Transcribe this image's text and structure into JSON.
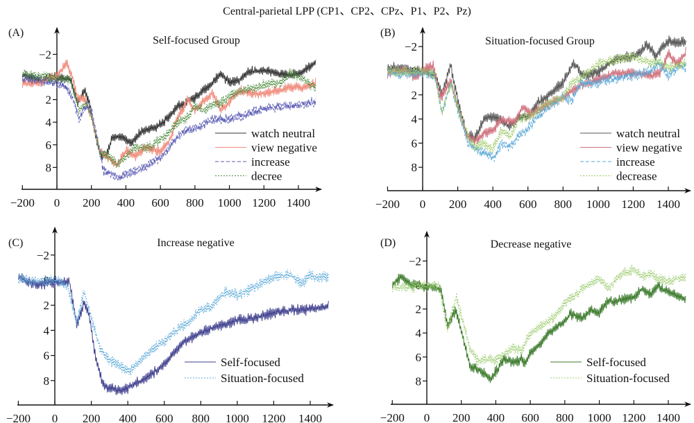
{
  "title": "Central-parietal LPP (CP1、CP2、CPz、P1、P2、Pz)",
  "chart_data": [
    {
      "type": "line",
      "panel": "(A)",
      "title": "Self-focused Group",
      "xlabel": "",
      "ylabel": "",
      "xlim": [
        -200,
        1500
      ],
      "ylim": [
        -3.5,
        10
      ],
      "y_inverted": true,
      "xticks": [
        -200,
        0,
        200,
        400,
        600,
        800,
        1000,
        1200,
        1400
      ],
      "yticks": [
        -2,
        0,
        2,
        4,
        6,
        8
      ],
      "legend_position": "bottom-right",
      "series": [
        {
          "name": "watch neutral",
          "color": "#333333",
          "style": "solid",
          "x": [
            -200,
            -100,
            0,
            80,
            120,
            160,
            190,
            230,
            260,
            290,
            320,
            380,
            430,
            480,
            550,
            620,
            700,
            800,
            900,
            950,
            1000,
            1050,
            1100,
            1200,
            1300,
            1400,
            1500
          ],
          "y": [
            -0.2,
            0.3,
            0,
            0.2,
            2.2,
            1.2,
            2.3,
            5.8,
            7.0,
            6.8,
            5.4,
            5.3,
            5.9,
            4.9,
            4.6,
            4.0,
            2.6,
            1.8,
            0.6,
            -0.3,
            0.5,
            0.4,
            -0.4,
            -0.6,
            -0.2,
            -0.3,
            -1.2
          ]
        },
        {
          "name": "view negative",
          "color": "#f08c7c",
          "style": "solid",
          "x": [
            -200,
            -100,
            -30,
            0,
            60,
            90,
            120,
            160,
            200,
            250,
            300,
            350,
            400,
            450,
            520,
            600,
            650,
            700,
            760,
            800,
            860,
            900,
            950,
            1000,
            1060,
            1150,
            1250,
            1350,
            1450,
            1500
          ],
          "y": [
            0.6,
            0.5,
            0,
            -0.1,
            -1.2,
            0,
            1.8,
            1.9,
            3.5,
            6.6,
            7.2,
            7.8,
            6.5,
            7.0,
            6.2,
            6.6,
            5.8,
            3.5,
            2.0,
            3.0,
            2.0,
            1.4,
            2.9,
            2.2,
            1.2,
            1.5,
            1.3,
            0.9,
            0.9,
            0.5
          ]
        },
        {
          "name": "increase",
          "color": "#5a5ab4",
          "style": "dashed",
          "x": [
            -200,
            -100,
            -20,
            40,
            90,
            130,
            170,
            200,
            240,
            270,
            300,
            360,
            400,
            450,
            500,
            560,
            620,
            680,
            750,
            820,
            900,
            1000,
            1100,
            1200,
            1300,
            1400,
            1500
          ],
          "y": [
            0.1,
            0.3,
            0.5,
            0.7,
            1.8,
            3.8,
            2.5,
            3.0,
            5.8,
            8.3,
            8.5,
            8.9,
            8.6,
            8.4,
            8.0,
            7.5,
            6.9,
            5.6,
            4.7,
            4.5,
            3.8,
            3.7,
            3.3,
            2.8,
            2.6,
            2.5,
            2.2
          ]
        },
        {
          "name": "decree",
          "color": "#4a8a3a",
          "style": "dotted",
          "x": [
            -200,
            -100,
            0,
            80,
            130,
            170,
            200,
            250,
            300,
            350,
            400,
            450,
            500,
            550,
            600,
            650,
            700,
            760,
            800,
            850,
            900,
            950,
            1000,
            1050,
            1100,
            1200,
            1300,
            1350,
            1450,
            1500
          ],
          "y": [
            -0.3,
            -0.1,
            0.1,
            0.3,
            3.0,
            2.3,
            3.5,
            6.8,
            7.0,
            7.8,
            7.0,
            6.2,
            6.3,
            6.1,
            5.5,
            5.0,
            4.0,
            3.6,
            2.4,
            3.0,
            2.4,
            2.3,
            1.7,
            1.3,
            1.1,
            0.7,
            0.5,
            -0.4,
            0.4,
            1.0
          ]
        }
      ]
    },
    {
      "type": "line",
      "panel": "(B)",
      "title": "Situation-focused Group",
      "xlabel": "",
      "ylabel": "",
      "xlim": [
        -200,
        1500
      ],
      "ylim": [
        -3.5,
        10
      ],
      "y_inverted": true,
      "xticks": [
        -200,
        0,
        200,
        400,
        600,
        800,
        1000,
        1200,
        1400
      ],
      "yticks": [
        -2,
        0,
        2,
        4,
        6,
        8
      ],
      "legend_position": "bottom-right",
      "series": [
        {
          "name": "watch neutral",
          "color": "#555555",
          "style": "solid",
          "x": [
            -200,
            -100,
            0,
            70,
            110,
            160,
            200,
            250,
            300,
            350,
            420,
            490,
            550,
            600,
            650,
            700,
            800,
            860,
            920,
            1000,
            1100,
            1200,
            1280,
            1330,
            1400,
            1450,
            1500
          ],
          "y": [
            -0.3,
            -0.2,
            0.1,
            0.3,
            2.0,
            -0.5,
            2.5,
            5.2,
            5.6,
            4.0,
            3.8,
            4.6,
            3.8,
            3.9,
            2.8,
            2.2,
            1.0,
            -0.7,
            0.5,
            0.1,
            -1.0,
            -1.2,
            -2.1,
            -1.3,
            -2.5,
            -2.3,
            -2.4
          ]
        },
        {
          "name": "view negative",
          "color": "#d0707c",
          "style": "solid",
          "x": [
            -200,
            -100,
            -40,
            0,
            60,
            100,
            160,
            200,
            250,
            300,
            350,
            400,
            450,
            520,
            570,
            620,
            700,
            800,
            900,
            1000,
            1100,
            1200,
            1300,
            1350,
            1400,
            1450,
            1500
          ],
          "y": [
            0.2,
            0.0,
            0.6,
            0.0,
            -0.5,
            2.3,
            0.8,
            3.0,
            5.3,
            5.8,
            5.2,
            5.0,
            4.0,
            4.3,
            3.1,
            3.6,
            2.8,
            2.2,
            1.2,
            0.7,
            0.2,
            0.2,
            0.4,
            0.2,
            -1.4,
            -0.6,
            -1.5
          ]
        },
        {
          "name": "increase",
          "color": "#5aa8d8",
          "style": "dashed",
          "x": [
            -200,
            -100,
            0,
            70,
            110,
            160,
            200,
            260,
            300,
            350,
            410,
            450,
            500,
            550,
            600,
            650,
            700,
            800,
            850,
            900,
            1000,
            1100,
            1200,
            1300,
            1350,
            1400,
            1450,
            1500
          ],
          "y": [
            0.1,
            0.3,
            0.2,
            0.5,
            3.5,
            1.0,
            3.2,
            6.0,
            6.5,
            6.8,
            7.2,
            6.0,
            6.3,
            5.3,
            4.8,
            3.8,
            3.2,
            2.2,
            2.5,
            1.0,
            1.0,
            0.6,
            0.4,
            0.0,
            -0.6,
            0.5,
            -0.3,
            -0.3
          ]
        },
        {
          "name": "decrease",
          "color": "#9ac860",
          "style": "dotted",
          "x": [
            -200,
            -100,
            0,
            70,
            110,
            160,
            200,
            260,
            300,
            350,
            400,
            450,
            500,
            550,
            600,
            650,
            700,
            800,
            850,
            900,
            950,
            1000,
            1100,
            1200,
            1300,
            1350,
            1400,
            1500
          ],
          "y": [
            0.0,
            0.1,
            0.0,
            0.4,
            3.5,
            1.0,
            3.0,
            5.5,
            6.4,
            6.0,
            6.5,
            5.0,
            5.4,
            4.0,
            3.8,
            3.4,
            2.8,
            2.2,
            1.0,
            0.6,
            0.0,
            -0.6,
            -0.9,
            -1.2,
            -0.6,
            -0.8,
            -0.2,
            -0.6
          ]
        }
      ]
    },
    {
      "type": "line",
      "panel": "(C)",
      "title": "Increase negative",
      "xlabel": "",
      "ylabel": "",
      "xlim": [
        -200,
        1500
      ],
      "ylim": [
        -3.5,
        10
      ],
      "y_inverted": true,
      "xticks": [
        -200,
        0,
        200,
        400,
        600,
        800,
        1000,
        1200,
        1400
      ],
      "yticks": [
        -2,
        0,
        2,
        4,
        6,
        8
      ],
      "legend_position": "bottom-right",
      "series": [
        {
          "name": "Self-focused",
          "color": "#3c3c8c",
          "style": "solid",
          "x": [
            -200,
            -100,
            0,
            80,
            120,
            160,
            190,
            220,
            250,
            270,
            300,
            360,
            420,
            480,
            550,
            600,
            700,
            800,
            900,
            1000,
            1100,
            1200,
            1300,
            1400,
            1500
          ],
          "y": [
            -0.2,
            0.4,
            0.1,
            0.1,
            3.6,
            1.8,
            2.8,
            5.8,
            7.6,
            8.5,
            8.6,
            8.9,
            8.4,
            8.0,
            7.3,
            6.7,
            5.0,
            4.2,
            3.6,
            3.2,
            3.0,
            2.6,
            2.4,
            2.3,
            2.1
          ]
        },
        {
          "name": "Situation-focused",
          "color": "#5aa8d8",
          "style": "dotted",
          "x": [
            -200,
            -100,
            0,
            70,
            120,
            160,
            200,
            250,
            300,
            350,
            410,
            450,
            500,
            550,
            600,
            650,
            700,
            750,
            800,
            850,
            900,
            950,
            1000,
            1100,
            1200,
            1300,
            1350,
            1400,
            1450,
            1500
          ],
          "y": [
            -0.1,
            0.1,
            0.0,
            0.4,
            3.4,
            0.9,
            3.0,
            5.5,
            6.4,
            6.8,
            7.3,
            6.6,
            6.0,
            5.3,
            4.9,
            4.2,
            3.7,
            3.2,
            2.3,
            2.2,
            1.4,
            0.9,
            1.2,
            0.5,
            -0.3,
            -0.4,
            0.3,
            -0.4,
            -0.2,
            -0.3
          ]
        }
      ]
    },
    {
      "type": "line",
      "panel": "(D)",
      "title": "Decrease negative",
      "xlabel": "",
      "ylabel": "",
      "xlim": [
        -200,
        1500
      ],
      "ylim": [
        -3.5,
        10
      ],
      "y_inverted": true,
      "xticks": [
        -200,
        0,
        200,
        400,
        600,
        800,
        1000,
        1200,
        1400
      ],
      "yticks": [
        -2,
        0,
        2,
        4,
        6,
        8
      ],
      "legend_position": "bottom-right",
      "series": [
        {
          "name": "Self-focused",
          "color": "#3c7a2c",
          "style": "solid",
          "x": [
            -200,
            -150,
            -100,
            0,
            80,
            120,
            170,
            200,
            250,
            300,
            340,
            370,
            420,
            450,
            500,
            550,
            570,
            600,
            650,
            700,
            750,
            800,
            830,
            900,
            950,
            1000,
            1050,
            1100,
            1200,
            1250,
            1300,
            1340,
            1400,
            1450,
            1500
          ],
          "y": [
            0.0,
            -0.7,
            -0.1,
            0.2,
            0.3,
            3.3,
            2.1,
            3.8,
            6.8,
            7.1,
            7.3,
            7.9,
            6.8,
            6.2,
            6.4,
            6.2,
            6.6,
            5.7,
            5.1,
            4.0,
            3.6,
            3.0,
            2.4,
            2.8,
            2.1,
            2.3,
            1.3,
            1.4,
            1.0,
            0.3,
            0.8,
            0.1,
            0.6,
            0.8,
            1.2
          ]
        },
        {
          "name": "Situation-focused",
          "color": "#9ccc70",
          "style": "dotted",
          "x": [
            -200,
            -100,
            0,
            70,
            120,
            170,
            200,
            250,
            300,
            350,
            400,
            450,
            500,
            550,
            600,
            650,
            700,
            750,
            800,
            850,
            900,
            950,
            1000,
            1050,
            1100,
            1150,
            1200,
            1250,
            1300,
            1350,
            1400,
            1450,
            1500
          ],
          "y": [
            0.2,
            0.2,
            0.0,
            0.0,
            3.8,
            1.0,
            2.5,
            5.3,
            6.4,
            6.2,
            6.2,
            5.8,
            5.2,
            5.5,
            4.0,
            3.5,
            3.0,
            2.5,
            1.5,
            1.0,
            0.3,
            -0.1,
            -0.6,
            0.3,
            -0.5,
            -1.0,
            -1.3,
            -0.7,
            -0.9,
            -0.5,
            -0.3,
            -0.5,
            -0.6
          ]
        }
      ]
    }
  ]
}
